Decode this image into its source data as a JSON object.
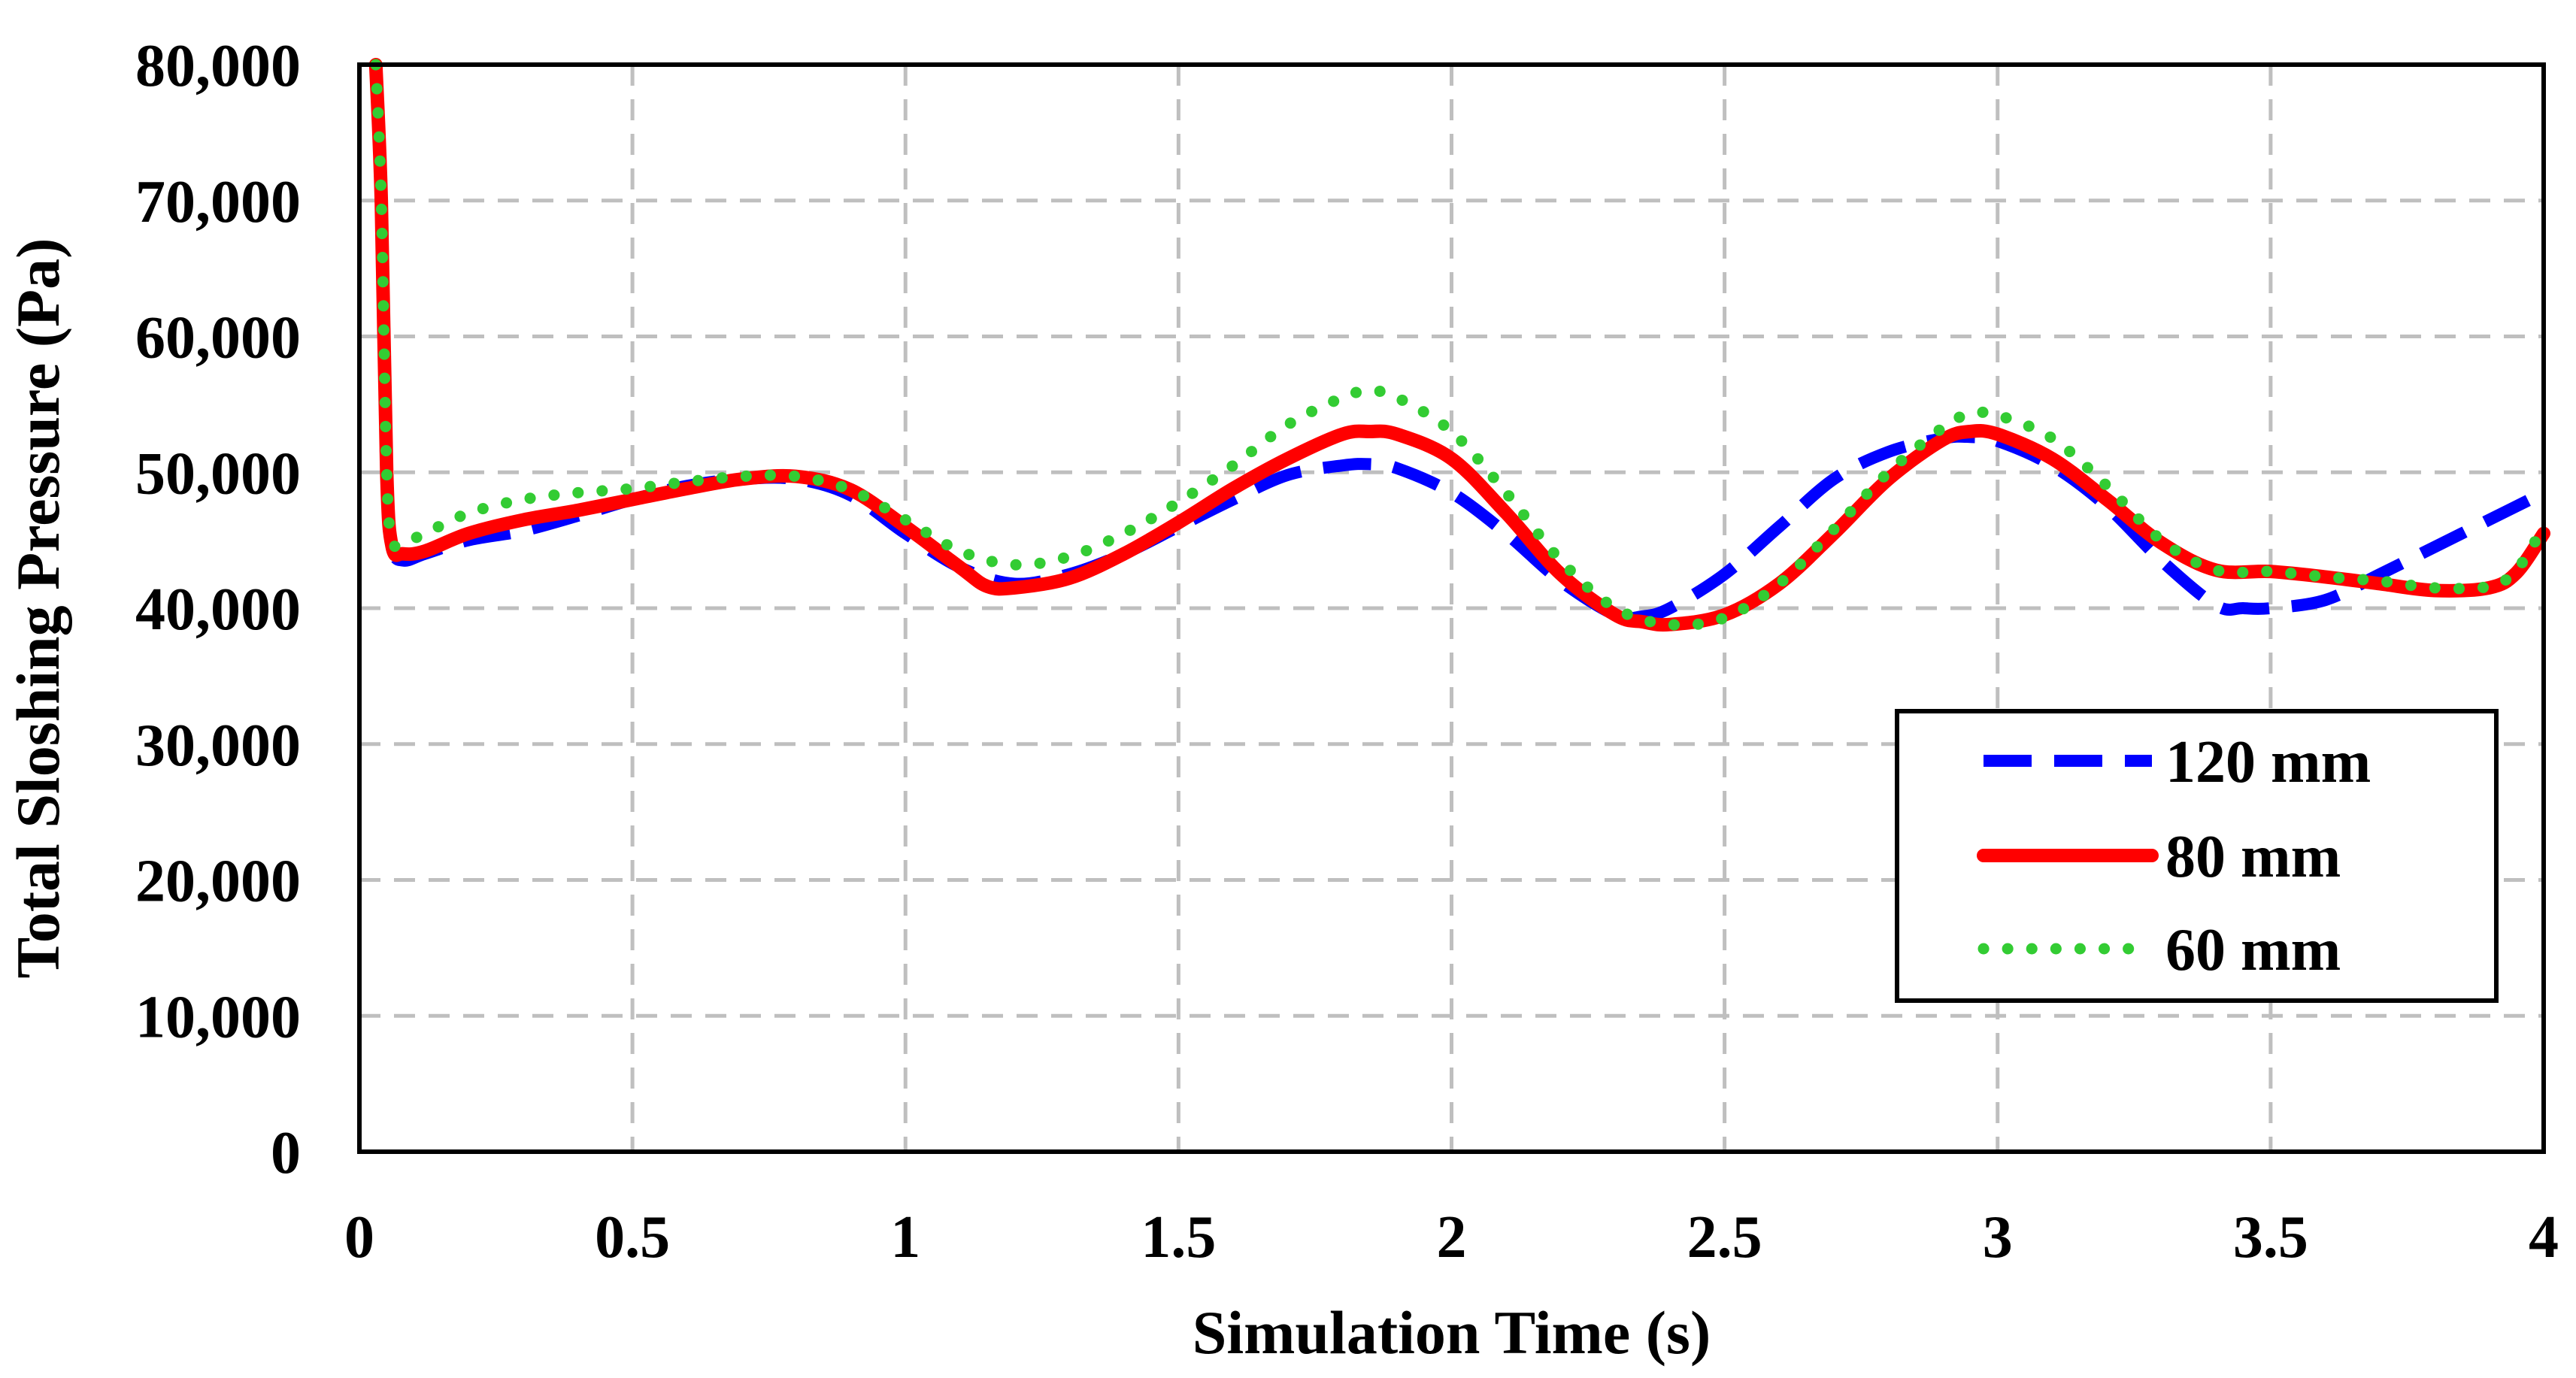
{
  "chart_data": {
    "type": "line",
    "title": "",
    "xlabel": "Simulation Time (s)",
    "ylabel": "Total Sloshing Pressure (Pa)",
    "xlim": [
      0,
      4
    ],
    "ylim": [
      0,
      80000
    ],
    "xticks": [
      0,
      0.5,
      1,
      1.5,
      2,
      2.5,
      3,
      3.5,
      4
    ],
    "xtick_labels": [
      "0",
      "0.5",
      "1",
      "1.5",
      "2",
      "2.5",
      "3",
      "3.5",
      "4"
    ],
    "yticks": [
      0,
      10000,
      20000,
      30000,
      40000,
      50000,
      60000,
      70000,
      80000
    ],
    "ytick_labels": [
      "0",
      "10,000",
      "20,000",
      "30,000",
      "40,000",
      "50,000",
      "60,000",
      "70,000",
      "80,000"
    ],
    "grid": true,
    "legend_position": "right",
    "series": [
      {
        "name": "120 mm",
        "color": "#0000ff",
        "style": "dashed",
        "x": [
          0.03,
          0.04,
          0.05,
          0.06,
          0.08,
          0.12,
          0.2,
          0.3,
          0.4,
          0.5,
          0.6,
          0.7,
          0.8,
          0.9,
          1.0,
          1.1,
          1.2,
          1.3,
          1.4,
          1.5,
          1.6,
          1.7,
          1.8,
          1.85,
          1.9,
          2.0,
          2.1,
          2.2,
          2.3,
          2.35,
          2.4,
          2.5,
          2.6,
          2.7,
          2.8,
          2.9,
          2.95,
          3.0,
          3.1,
          3.2,
          3.3,
          3.4,
          3.45,
          3.5,
          3.6,
          3.7,
          3.8,
          3.9,
          4.0
        ],
        "y": [
          80000,
          70000,
          50000,
          44500,
          43500,
          44000,
          45000,
          45700,
          46800,
          48000,
          49000,
          49500,
          49500,
          48300,
          45500,
          43000,
          41800,
          42500,
          44000,
          46000,
          48000,
          49800,
          50500,
          50600,
          50300,
          48500,
          45500,
          42000,
          39500,
          39400,
          40000,
          42500,
          46000,
          49500,
          51500,
          52500,
          52600,
          52300,
          50500,
          47500,
          43500,
          40200,
          40000,
          40000,
          40600,
          42500,
          44500,
          46500,
          48500
        ]
      },
      {
        "name": "80 mm",
        "color": "#ff0000",
        "style": "solid",
        "x": [
          0.03,
          0.04,
          0.05,
          0.06,
          0.08,
          0.12,
          0.2,
          0.3,
          0.4,
          0.5,
          0.6,
          0.7,
          0.8,
          0.9,
          1.0,
          1.1,
          1.15,
          1.2,
          1.3,
          1.4,
          1.5,
          1.6,
          1.7,
          1.8,
          1.85,
          1.9,
          2.0,
          2.1,
          2.2,
          2.3,
          2.35,
          2.4,
          2.5,
          2.6,
          2.7,
          2.8,
          2.9,
          2.95,
          3.0,
          3.1,
          3.2,
          3.3,
          3.4,
          3.5,
          3.6,
          3.7,
          3.8,
          3.9,
          3.95,
          4.0
        ],
        "y": [
          80000,
          70000,
          50000,
          44500,
          44000,
          44200,
          45500,
          46500,
          47200,
          48000,
          48800,
          49500,
          49700,
          48700,
          46000,
          43000,
          41600,
          41500,
          42200,
          44000,
          46300,
          48800,
          51000,
          52800,
          53000,
          52800,
          51000,
          47000,
          42500,
          39500,
          39000,
          38800,
          39500,
          41800,
          45500,
          49500,
          52400,
          53000,
          52800,
          51000,
          48000,
          44800,
          42800,
          42700,
          42300,
          41800,
          41300,
          41500,
          42600,
          45500
        ]
      },
      {
        "name": "60 mm",
        "color": "#33cc33",
        "style": "dotted",
        "x": [
          0.03,
          0.04,
          0.05,
          0.06,
          0.08,
          0.12,
          0.2,
          0.3,
          0.4,
          0.5,
          0.6,
          0.7,
          0.8,
          0.9,
          1.0,
          1.1,
          1.2,
          1.3,
          1.4,
          1.5,
          1.6,
          1.7,
          1.8,
          1.85,
          1.9,
          2.0,
          2.1,
          2.2,
          2.3,
          2.4,
          2.5,
          2.6,
          2.7,
          2.8,
          2.9,
          2.95,
          3.0,
          3.1,
          3.2,
          3.3,
          3.4,
          3.5,
          3.6,
          3.7,
          3.8,
          3.9,
          3.95,
          4.0
        ],
        "y": [
          80000,
          70000,
          50000,
          45000,
          44800,
          45500,
          47000,
          48000,
          48500,
          48800,
          49300,
          49700,
          49700,
          48700,
          46500,
          44200,
          43200,
          43800,
          45500,
          47800,
          50500,
          53500,
          55500,
          56000,
          55500,
          53000,
          48500,
          43500,
          40000,
          38800,
          39300,
          41800,
          45800,
          50000,
          53300,
          54300,
          54200,
          52500,
          49000,
          45000,
          42800,
          42700,
          42300,
          42000,
          41500,
          41600,
          42800,
          46000
        ]
      }
    ]
  }
}
